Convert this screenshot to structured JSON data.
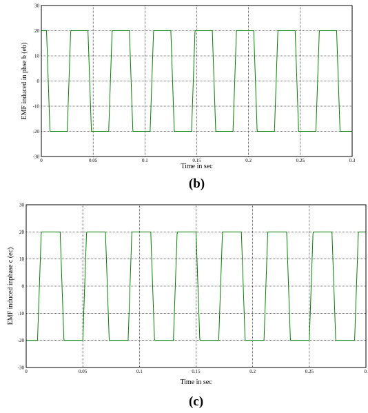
{
  "chart_data": [
    {
      "type": "line",
      "panel_label": "(b)",
      "xlabel": "Time in sec",
      "ylabel": "EMF induced in phse b (eb)",
      "xlim": [
        0,
        0.3
      ],
      "ylim": [
        -30,
        30
      ],
      "x_ticks": [
        "0",
        "0.05",
        "0.1",
        "0.15",
        "0.2",
        "0.25",
        "0.3"
      ],
      "y_ticks": [
        "30",
        "20",
        "10",
        "0",
        "-10",
        "-20",
        "-30"
      ],
      "grid": true,
      "line_color": "#008000",
      "series": [
        {
          "waveform": "trapezoidal",
          "amplitude": 20,
          "period": 0.04,
          "phase_offset": 0.005,
          "x_range": [
            0,
            0.3
          ]
        }
      ]
    },
    {
      "type": "line",
      "panel_label": "(c)",
      "xlabel": "Time in sec",
      "ylabel": "EMF induced inphase c (ec)",
      "xlim": [
        0,
        0.3
      ],
      "ylim": [
        -30,
        30
      ],
      "x_ticks": [
        "0",
        "0.05",
        "0.1",
        "0.15",
        "0.2",
        "0.25",
        "0."
      ],
      "y_ticks": [
        "30",
        "20",
        "10",
        "0",
        "-10",
        "-20",
        "-30"
      ],
      "grid": true,
      "line_color": "#008000",
      "series": [
        {
          "waveform": "trapezoidal",
          "amplitude": 20,
          "period": 0.04,
          "phase_offset": 0.02,
          "x_range": [
            0,
            0.3
          ]
        }
      ]
    }
  ]
}
